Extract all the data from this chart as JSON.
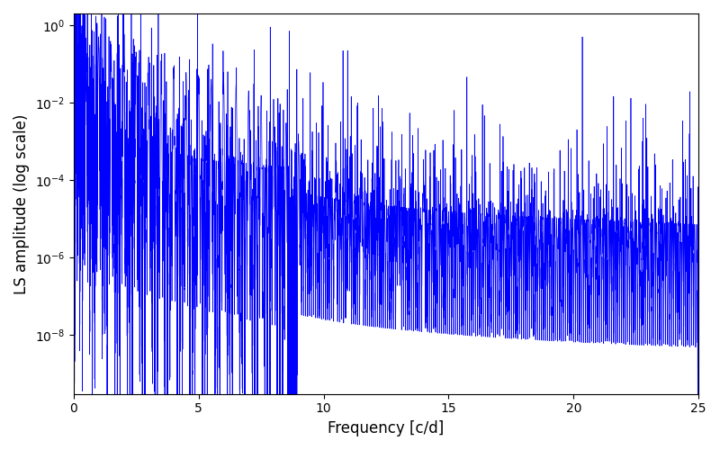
{
  "title": "",
  "xlabel": "Frequency [c/d]",
  "ylabel": "LS amplitude (log scale)",
  "line_color": "#0000ff",
  "line_width": 0.5,
  "xlim": [
    0,
    25
  ],
  "ylim_bottom": 3e-10,
  "ylim_top": 2.0,
  "freq_max": 25,
  "n_points": 20000,
  "seed": 7,
  "background_color": "#ffffff",
  "figsize": [
    8.0,
    5.0
  ],
  "dpi": 100
}
